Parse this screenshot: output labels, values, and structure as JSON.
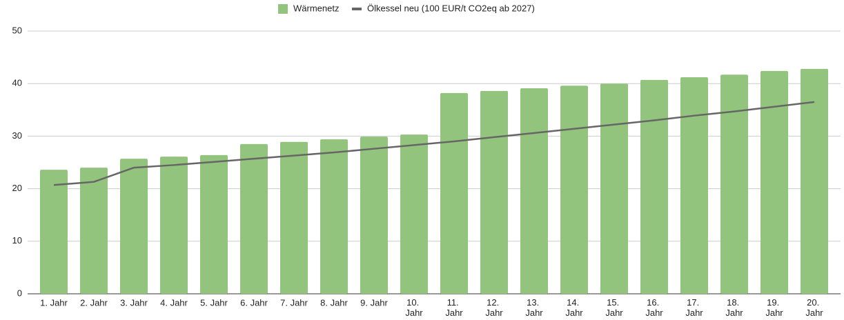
{
  "chart_data": {
    "type": "bar-line",
    "categories": [
      "1. Jahr",
      "2. Jahr",
      "3. Jahr",
      "4. Jahr",
      "5. Jahr",
      "6. Jahr",
      "7. Jahr",
      "8. Jahr",
      "9. Jahr",
      "10. Jahr",
      "11. Jahr",
      "12. Jahr",
      "13. Jahr",
      "14. Jahr",
      "15. Jahr",
      "16. Jahr",
      "17. Jahr",
      "18. Jahr",
      "19. Jahr",
      "20. Jahr"
    ],
    "series": [
      {
        "name": "Wärmenetz",
        "type": "bar",
        "color": "#93c47d",
        "values": [
          23.6,
          24.0,
          25.7,
          26.1,
          26.4,
          28.5,
          28.9,
          29.4,
          29.9,
          30.3,
          38.2,
          38.6,
          39.1,
          39.6,
          40.0,
          40.7,
          41.2,
          41.7,
          42.4,
          42.8
        ]
      },
      {
        "name": "Ölkessel neu (100 EUR/t CO2eq ab 2027)",
        "type": "line",
        "color": "#666666",
        "values": [
          20.7,
          21.3,
          24.0,
          24.5,
          25.1,
          25.7,
          26.3,
          26.9,
          27.6,
          28.3,
          29.0,
          29.8,
          30.6,
          31.4,
          32.2,
          33.0,
          33.9,
          34.7,
          35.6,
          36.5
        ]
      }
    ],
    "ylim": [
      0,
      50
    ],
    "yticks": [
      0,
      10,
      20,
      30,
      40,
      50
    ],
    "grid": true,
    "legend": "top"
  }
}
